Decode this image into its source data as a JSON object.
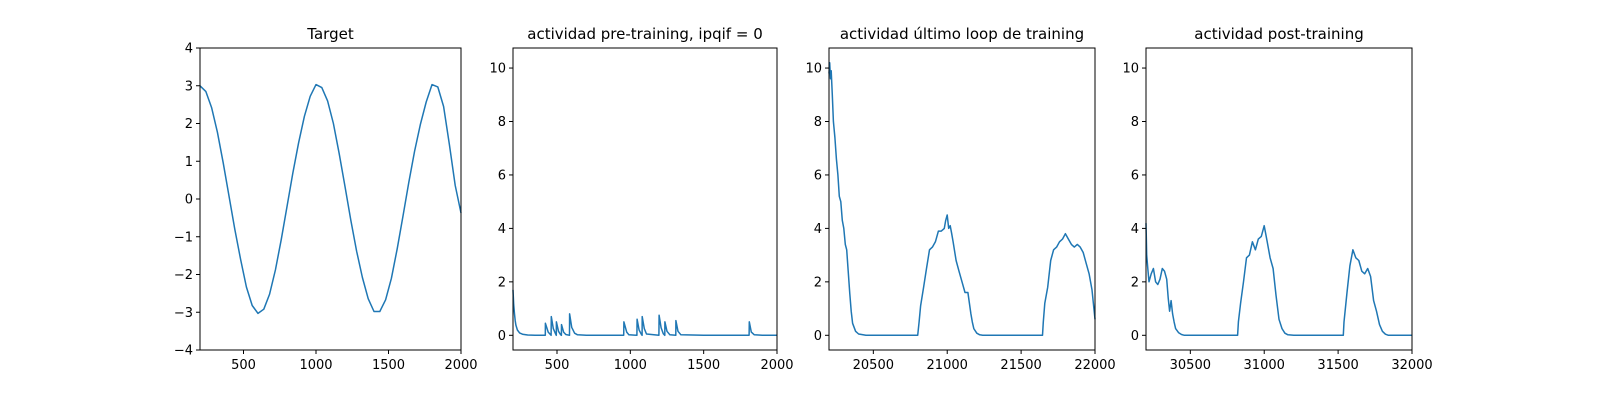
{
  "figure": {
    "background": "#ffffff",
    "line_color": "#1f77b4"
  },
  "chart_data": [
    {
      "type": "line",
      "title": "Target",
      "xlabel": "",
      "ylabel": "",
      "xlim": [
        200,
        2000
      ],
      "ylim": [
        -4,
        4
      ],
      "xticks": [
        500,
        1000,
        1500,
        2000
      ],
      "yticks": [
        -4,
        -3,
        -2,
        -1,
        0,
        1,
        2,
        3,
        4
      ],
      "xtick_labels": [
        "500",
        "1000",
        "1500",
        "2000"
      ],
      "ytick_labels": [
        "4",
        "3",
        "2",
        "1",
        "0",
        "−1",
        "−2",
        "−3",
        "−4"
      ],
      "grid": false,
      "series": [
        {
          "color": "#1f77b4",
          "x": [
            200,
            240,
            280,
            320,
            360,
            400,
            440,
            480,
            520,
            560,
            600,
            640,
            680,
            720,
            760,
            800,
            840,
            880,
            920,
            960,
            1000,
            1040,
            1080,
            1120,
            1160,
            1200,
            1240,
            1280,
            1320,
            1360,
            1400,
            1440,
            1480,
            1520,
            1560,
            1600,
            1640,
            1680,
            1720,
            1760,
            1800,
            1840,
            1880,
            1920,
            1960,
            2000
          ],
          "y": [
            3.0,
            2.85,
            2.42,
            1.77,
            0.96,
            0.08,
            -0.8,
            -1.6,
            -2.33,
            -2.82,
            -3.03,
            -2.92,
            -2.52,
            -1.88,
            -1.08,
            -0.2,
            0.68,
            1.49,
            2.19,
            2.72,
            3.03,
            2.95,
            2.6,
            2.0,
            1.2,
            0.33,
            -0.56,
            -1.38,
            -2.08,
            -2.64,
            -2.98,
            -2.98,
            -2.67,
            -2.1,
            -1.32,
            -0.45,
            0.44,
            1.27,
            1.98,
            2.57,
            3.03,
            2.97,
            2.45,
            1.44,
            0.36,
            -0.37
          ]
        }
      ]
    },
    {
      "type": "line",
      "title": "actividad pre-training, ipqif = 0",
      "xlabel": "",
      "ylabel": "",
      "xlim": [
        200,
        2000
      ],
      "ylim": [
        -0.55,
        10.75
      ],
      "xticks": [
        500,
        1000,
        1500,
        2000
      ],
      "yticks": [
        0,
        2,
        4,
        6,
        8,
        10
      ],
      "xtick_labels": [
        "500",
        "1000",
        "1500",
        "2000"
      ],
      "ytick_labels": [
        "0",
        "2",
        "4",
        "6",
        "8",
        "10"
      ],
      "grid": false,
      "series": [
        {
          "color": "#1f77b4",
          "x": [
            200,
            205,
            210,
            215,
            220,
            230,
            245,
            265,
            300,
            350,
            420,
            421,
            440,
            455,
            460,
            461,
            475,
            490,
            495,
            496,
            510,
            525,
            530,
            531,
            545,
            560,
            585,
            586,
            600,
            620,
            640,
            700,
            800,
            900,
            955,
            956,
            975,
            990,
            1045,
            1046,
            1060,
            1075,
            1080,
            1081,
            1095,
            1110,
            1195,
            1196,
            1210,
            1225,
            1235,
            1236,
            1250,
            1270,
            1310,
            1311,
            1325,
            1345,
            1500,
            1700,
            1810,
            1811,
            1825,
            1845,
            1900,
            2000
          ],
          "y": [
            1.7,
            1.15,
            0.8,
            0.55,
            0.38,
            0.2,
            0.09,
            0.04,
            0.01,
            0.0,
            0.0,
            0.45,
            0.12,
            0.03,
            0.0,
            0.7,
            0.25,
            0.06,
            0.0,
            0.5,
            0.15,
            0.02,
            0.0,
            0.4,
            0.12,
            0.03,
            0.0,
            0.8,
            0.3,
            0.08,
            0.02,
            0.0,
            0.0,
            0.0,
            0.0,
            0.5,
            0.12,
            0.02,
            0.0,
            0.6,
            0.2,
            0.04,
            0.0,
            0.7,
            0.25,
            0.05,
            0.0,
            0.75,
            0.28,
            0.06,
            0.0,
            0.5,
            0.15,
            0.02,
            0.0,
            0.55,
            0.15,
            0.02,
            0.0,
            0.0,
            0.0,
            0.5,
            0.12,
            0.02,
            0.0,
            0.0
          ]
        }
      ]
    },
    {
      "type": "line",
      "title": "actividad último loop de training",
      "xlabel": "",
      "ylabel": "",
      "xlim": [
        20200,
        22000
      ],
      "ylim": [
        -0.55,
        10.75
      ],
      "xticks": [
        20500,
        21000,
        21500,
        22000
      ],
      "yticks": [
        0,
        2,
        4,
        6,
        8,
        10
      ],
      "xtick_labels": [
        "20500",
        "21000",
        "21500",
        "22000"
      ],
      "ytick_labels": [
        "0",
        "2",
        "4",
        "6",
        "8",
        "10"
      ],
      "grid": false,
      "series": [
        {
          "color": "#1f77b4",
          "x": [
            20200,
            20205,
            20210,
            20215,
            20222,
            20230,
            20240,
            20250,
            20260,
            20270,
            20280,
            20290,
            20300,
            20310,
            20320,
            20330,
            20340,
            20350,
            20360,
            20380,
            20400,
            20450,
            20500,
            20600,
            20700,
            20780,
            20800,
            20810,
            20820,
            20840,
            20860,
            20880,
            20900,
            20920,
            20940,
            20960,
            20980,
            20990,
            21000,
            21010,
            21020,
            21030,
            21040,
            21060,
            21080,
            21100,
            21120,
            21140,
            21160,
            21170,
            21180,
            21200,
            21220,
            21240,
            21300,
            21400,
            21500,
            21600,
            21645,
            21650,
            21660,
            21680,
            21700,
            21720,
            21740,
            21760,
            21780,
            21800,
            21820,
            21840,
            21860,
            21880,
            21900,
            21920,
            21940,
            21960,
            21980,
            22000
          ],
          "y": [
            9.8,
            10.2,
            9.6,
            9.9,
            9.0,
            8.0,
            7.4,
            6.6,
            6.0,
            5.2,
            5.0,
            4.3,
            4.0,
            3.4,
            3.2,
            2.4,
            1.6,
            0.9,
            0.45,
            0.15,
            0.05,
            0.0,
            0.0,
            0.0,
            0.0,
            0.0,
            0.0,
            0.5,
            1.1,
            1.8,
            2.5,
            3.2,
            3.3,
            3.5,
            3.9,
            3.9,
            4.0,
            4.3,
            4.5,
            4.0,
            4.1,
            3.8,
            3.5,
            2.8,
            2.4,
            2.0,
            1.6,
            1.6,
            0.8,
            0.5,
            0.25,
            0.08,
            0.02,
            0.0,
            0.0,
            0.0,
            0.0,
            0.0,
            0.0,
            0.5,
            1.2,
            1.8,
            2.8,
            3.2,
            3.3,
            3.5,
            3.6,
            3.8,
            3.6,
            3.4,
            3.3,
            3.4,
            3.3,
            3.1,
            2.7,
            2.3,
            1.7,
            0.6
          ]
        }
      ]
    },
    {
      "type": "line",
      "title": "actividad post-training",
      "xlabel": "",
      "ylabel": "",
      "xlim": [
        30200,
        32000
      ],
      "ylim": [
        -0.55,
        10.75
      ],
      "xticks": [
        30500,
        31000,
        31500,
        32000
      ],
      "yticks": [
        0,
        2,
        4,
        6,
        8,
        10
      ],
      "xtick_labels": [
        "30500",
        "31000",
        "31500",
        "32000"
      ],
      "ytick_labels": [
        "0",
        "2",
        "4",
        "6",
        "8",
        "10"
      ],
      "grid": false,
      "series": [
        {
          "color": "#1f77b4",
          "x": [
            30200,
            30205,
            30212,
            30220,
            30235,
            30250,
            30265,
            30280,
            30295,
            30310,
            30325,
            30340,
            30350,
            30360,
            30370,
            30380,
            30390,
            30400,
            30420,
            30440,
            30460,
            30500,
            30600,
            30700,
            30800,
            30820,
            30825,
            30840,
            30860,
            30880,
            30900,
            30920,
            30940,
            30960,
            30980,
            31000,
            31020,
            31040,
            31060,
            31080,
            31100,
            31120,
            31140,
            31160,
            31200,
            31300,
            31400,
            31500,
            31535,
            31540,
            31560,
            31580,
            31600,
            31620,
            31640,
            31660,
            31680,
            31700,
            31720,
            31740,
            31760,
            31780,
            31800,
            31820,
            31840,
            31860,
            31900,
            31950,
            32000
          ],
          "y": [
            4.2,
            3.0,
            2.5,
            2.0,
            2.3,
            2.5,
            2.0,
            1.9,
            2.1,
            2.5,
            2.4,
            2.1,
            1.4,
            0.9,
            1.3,
            0.8,
            0.5,
            0.25,
            0.1,
            0.03,
            0.0,
            0.0,
            0.0,
            0.0,
            0.0,
            0.0,
            0.5,
            1.2,
            2.0,
            2.9,
            3.0,
            3.5,
            3.2,
            3.6,
            3.7,
            4.1,
            3.5,
            2.9,
            2.5,
            1.5,
            0.6,
            0.25,
            0.08,
            0.02,
            0.0,
            0.0,
            0.0,
            0.0,
            0.0,
            0.5,
            1.6,
            2.6,
            3.2,
            2.9,
            2.8,
            2.4,
            2.3,
            2.5,
            2.2,
            1.3,
            0.9,
            0.4,
            0.15,
            0.04,
            0.0,
            0.0,
            0.0,
            0.0,
            0.0
          ]
        }
      ]
    }
  ]
}
